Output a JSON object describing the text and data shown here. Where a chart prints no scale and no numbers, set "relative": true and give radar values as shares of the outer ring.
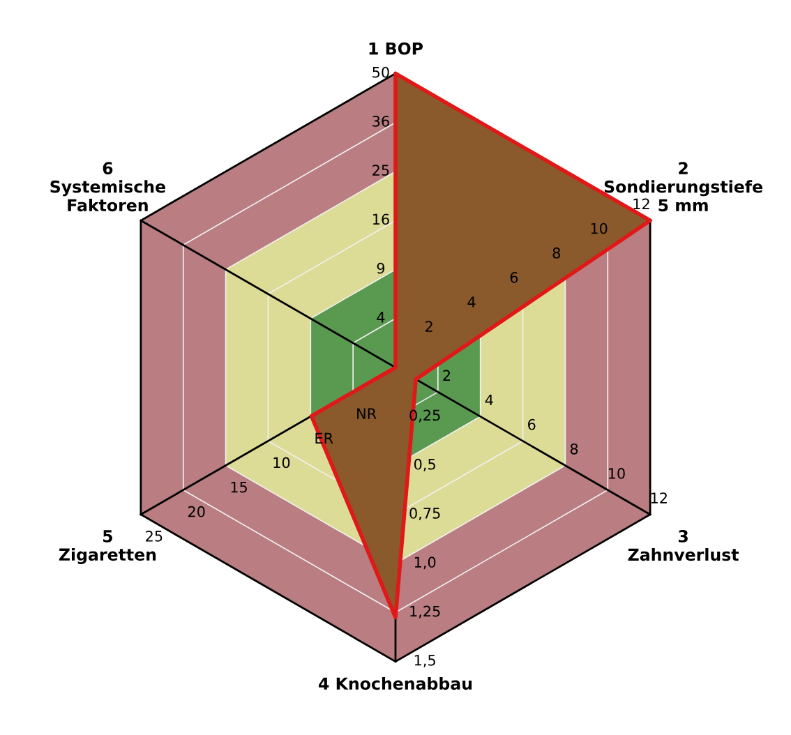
{
  "chart_data": {
    "type": "radar",
    "relative": true,
    "grid": true,
    "categories": [
      "1 BOP",
      "2\nSondierungstiefe\n5 mm",
      "3\nZahnverlust",
      "4 Knochenabbau",
      "5\nZigaretten",
      "6\nSystemische\nFaktoren"
    ],
    "series": [
      {
        "color": "#e01818",
        "values": [
          1.0,
          1.0,
          0.08,
          0.85,
          0.33,
          0.0
        ]
      }
    ],
    "annotations": [
      "4",
      "9",
      "16",
      "25",
      "36",
      "50",
      "2",
      "4",
      "6",
      "8",
      "10",
      "12",
      "2",
      "4",
      "6",
      "8",
      "10",
      "12",
      "0,25",
      "0,5",
      "0,75",
      "1,0",
      "1,25",
      "1,5",
      "NR",
      "ER",
      "10",
      "15",
      "20",
      "25"
    ]
  }
}
